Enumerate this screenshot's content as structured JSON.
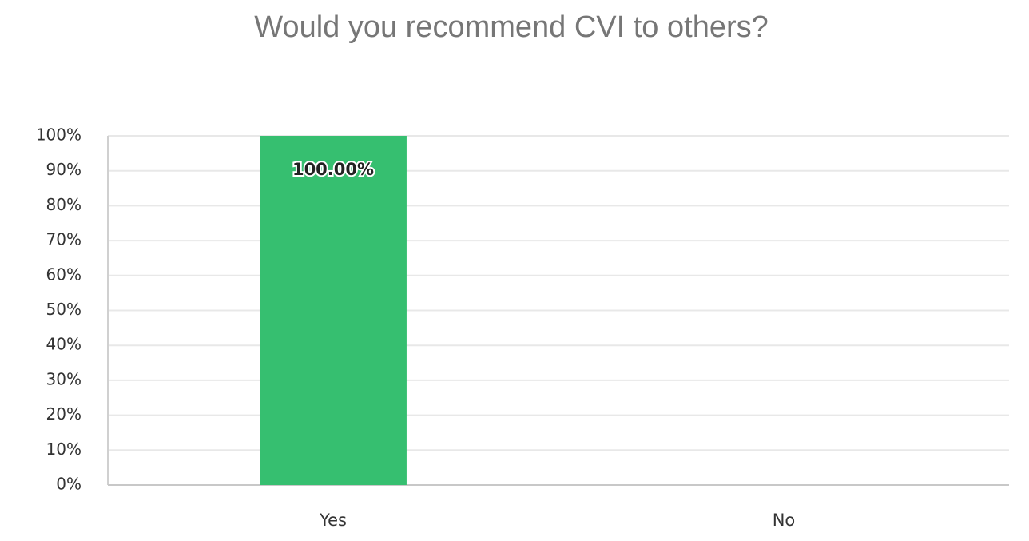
{
  "chart_data": {
    "type": "bar",
    "title": "Would you recommend CVI to others?",
    "categories": [
      "Yes",
      "No"
    ],
    "values": [
      100,
      0
    ],
    "value_labels": [
      "100.00%",
      null
    ],
    "color": "#36bf70",
    "ylim": [
      0,
      100
    ],
    "yticks": [
      {
        "value": 0,
        "label": "0%"
      },
      {
        "value": 10,
        "label": "10%"
      },
      {
        "value": 20,
        "label": "20%"
      },
      {
        "value": 30,
        "label": "30%"
      },
      {
        "value": 40,
        "label": "40%"
      },
      {
        "value": 50,
        "label": "50%"
      },
      {
        "value": 60,
        "label": "60%"
      },
      {
        "value": 70,
        "label": "70%"
      },
      {
        "value": 80,
        "label": "80%"
      },
      {
        "value": 90,
        "label": "90%"
      },
      {
        "value": 100,
        "label": "100%"
      }
    ],
    "grid": true
  }
}
